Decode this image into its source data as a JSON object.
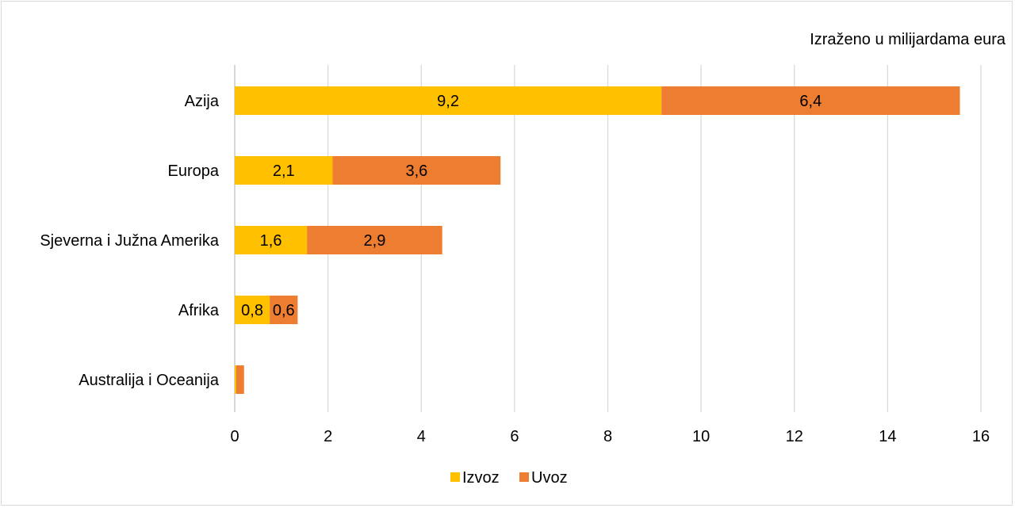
{
  "chart_data": {
    "type": "bar",
    "orientation": "horizontal",
    "stacked": true,
    "subtitle": "Izraženo u milijardama eura",
    "categories": [
      "Azija",
      "Europa",
      "Sjeverna i Južna Amerika",
      "Afrika",
      "Australija i Oceanija"
    ],
    "series": [
      {
        "name": "Izvoz",
        "color": "#ffc000",
        "values": [
          9.15,
          2.1,
          1.55,
          0.75,
          0.03
        ],
        "labels": [
          "9,2",
          "2,1",
          "1,6",
          "0,8",
          ""
        ]
      },
      {
        "name": "Uvoz",
        "color": "#ed7d31",
        "values": [
          6.4,
          3.6,
          2.9,
          0.6,
          0.17
        ],
        "labels": [
          "6,4",
          "3,6",
          "2,9",
          "0,6",
          ""
        ]
      }
    ],
    "xlim": [
      0,
      16
    ],
    "xticks": [
      0,
      2,
      4,
      6,
      8,
      10,
      12,
      14,
      16
    ],
    "grid": "vertical",
    "legend": "bottom"
  }
}
